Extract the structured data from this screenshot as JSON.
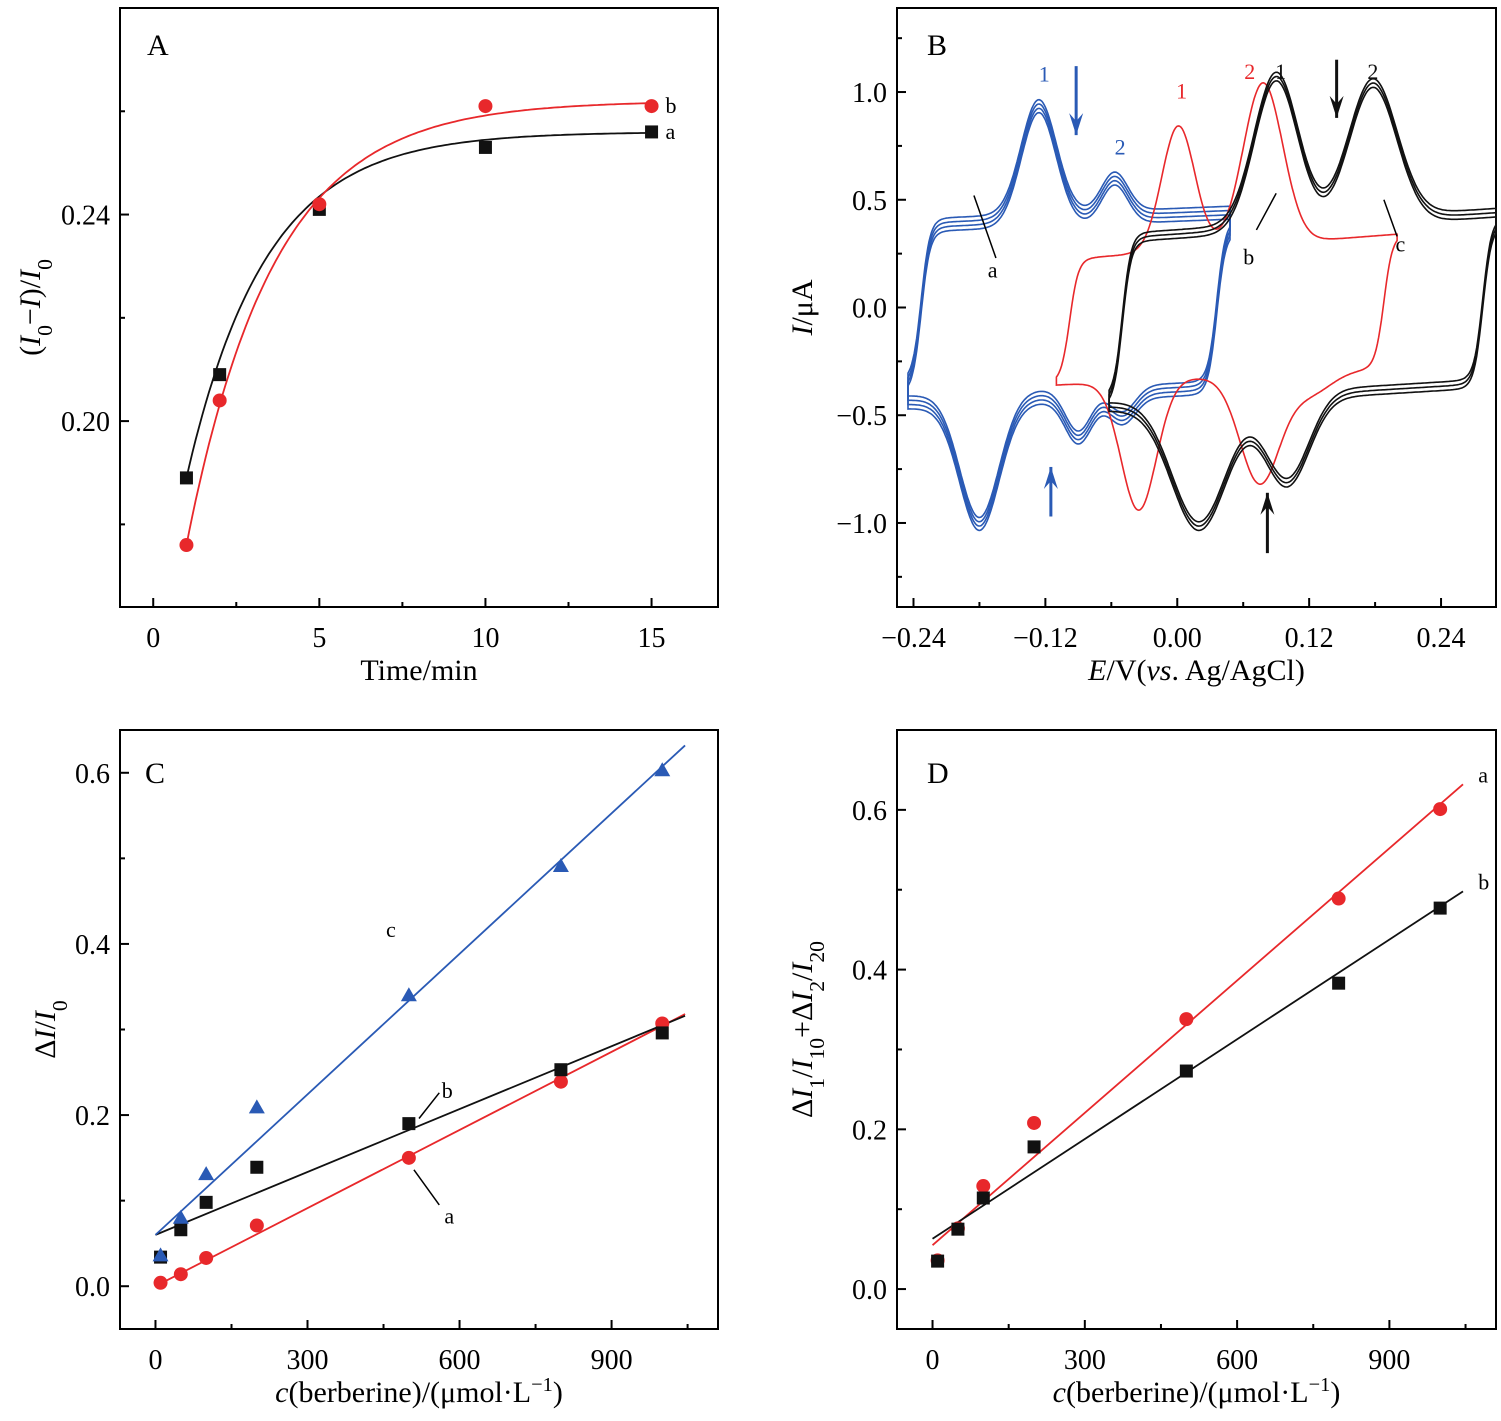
{
  "colors": {
    "black": "#111111",
    "red": "#e8282b",
    "blue": "#2a5ab5"
  },
  "chart_data": [
    {
      "panel": "A",
      "type": "line",
      "xlabel": "Time/min",
      "ylabel": "(I0−I)/I0",
      "ylabel_parts": [
        "(",
        "I",
        "0",
        "−",
        "I",
        ")/",
        "I",
        "0"
      ],
      "xlim": [
        -1,
        17
      ],
      "ylim": [
        0.164,
        0.28
      ],
      "xticks": [
        0,
        5,
        10,
        15
      ],
      "xticklabels": [
        "0",
        "5",
        "10",
        "15"
      ],
      "yticks": [
        0.2,
        0.24
      ],
      "yticklabels": [
        "0.20",
        "0.24"
      ],
      "grid": false,
      "series": [
        {
          "name": "a",
          "color": "#111111",
          "marker": "square",
          "x": [
            1,
            2,
            5,
            10,
            15
          ],
          "y": [
            0.189,
            0.209,
            0.241,
            0.253,
            0.256
          ]
        },
        {
          "name": "b",
          "color": "#e8282b",
          "marker": "circle",
          "x": [
            1,
            2,
            5,
            10,
            15
          ],
          "y": [
            0.176,
            0.204,
            0.242,
            0.261,
            0.261
          ]
        }
      ]
    },
    {
      "panel": "B",
      "type": "line",
      "xlabel": "E/V(vs. Ag/AgCl)",
      "xlabel_parts": [
        "E",
        "/V(",
        "vs",
        ". Ag/AgCl)"
      ],
      "ylabel": "I/μA",
      "ylabel_parts": [
        "I",
        "/μA"
      ],
      "xlim": [
        -0.255,
        0.29
      ],
      "ylim": [
        -1.39,
        1.39
      ],
      "xticks": [
        -0.24,
        -0.12,
        0.0,
        0.12,
        0.24
      ],
      "xticklabels": [
        "−0.24",
        "−0.12",
        "0.00",
        "0.12",
        "0.24"
      ],
      "yticks": [
        -1.0,
        -0.5,
        0.0,
        0.5,
        1.0
      ],
      "yticklabels": [
        "−1.0",
        "−0.5",
        "0.0",
        "0.5",
        "1.0"
      ],
      "grid": false,
      "curve_labels": [
        "a",
        "b",
        "c"
      ],
      "peak_labels": {
        "blue": [
          "1",
          "2"
        ],
        "red": [
          "1",
          "2"
        ],
        "black": [
          "1",
          "2"
        ]
      }
    },
    {
      "panel": "C",
      "type": "scatter",
      "xlabel": "c(berberine)/(μmol·L−1)",
      "xlabel_parts": [
        "c",
        "(berberine)/(μmol·L",
        "−1",
        ")"
      ],
      "ylabel": "ΔI/I0",
      "ylabel_parts": [
        "Δ",
        "I",
        "/",
        "I",
        "0"
      ],
      "xlim": [
        -70,
        1110
      ],
      "ylim": [
        -0.05,
        0.65
      ],
      "xticks": [
        0,
        300,
        600,
        900
      ],
      "xticklabels": [
        "0",
        "300",
        "600",
        "900"
      ],
      "yticks": [
        0.0,
        0.2,
        0.4,
        0.6
      ],
      "yticklabels": [
        "0.0",
        "0.2",
        "0.4",
        "0.6"
      ],
      "grid": false,
      "series": [
        {
          "name": "a",
          "color": "#e8282b",
          "marker": "circle",
          "x": [
            10,
            50,
            100,
            200,
            500,
            800,
            1000
          ],
          "y": [
            0.004,
            0.014,
            0.033,
            0.071,
            0.15,
            0.239,
            0.307
          ],
          "fit": [
            [
              0,
              0.0
            ],
            [
              1045,
              0.318
            ]
          ]
        },
        {
          "name": "b",
          "color": "#111111",
          "marker": "square",
          "x": [
            10,
            50,
            100,
            200,
            500,
            800,
            1000
          ],
          "y": [
            0.034,
            0.066,
            0.098,
            0.139,
            0.19,
            0.253,
            0.296
          ],
          "fit": [
            [
              0,
              0.06
            ],
            [
              1045,
              0.316
            ]
          ]
        },
        {
          "name": "c",
          "color": "#2a5ab5",
          "marker": "triangle",
          "x": [
            10,
            50,
            100,
            200,
            500,
            800,
            1000
          ],
          "y": [
            0.036,
            0.08,
            0.131,
            0.209,
            0.34,
            0.491,
            0.603
          ],
          "fit": [
            [
              0,
              0.06
            ],
            [
              1045,
              0.632
            ]
          ]
        }
      ]
    },
    {
      "panel": "D",
      "type": "scatter",
      "xlabel": "c(berberine)/(μmol·L−1)",
      "xlabel_parts": [
        "c",
        "(berberine)/(μmol·L",
        "−1",
        ")"
      ],
      "ylabel": "ΔI1/I10+ΔI2/I20",
      "ylabel_parts": [
        "Δ",
        "I",
        "1",
        "/",
        "I",
        "10",
        "+Δ",
        "I",
        "2",
        "/",
        "I",
        "20"
      ],
      "xlim": [
        -70,
        1110
      ],
      "ylim": [
        -0.05,
        0.7
      ],
      "xticks": [
        0,
        300,
        600,
        900
      ],
      "xticklabels": [
        "0",
        "300",
        "600",
        "900"
      ],
      "yticks": [
        0.0,
        0.2,
        0.4,
        0.6
      ],
      "yticklabels": [
        "0.0",
        "0.2",
        "0.4",
        "0.6"
      ],
      "grid": false,
      "series": [
        {
          "name": "a",
          "color": "#e8282b",
          "marker": "circle",
          "x": [
            10,
            50,
            100,
            200,
            500,
            800,
            1000
          ],
          "y": [
            0.036,
            0.076,
            0.129,
            0.208,
            0.338,
            0.489,
            0.601
          ],
          "fit": [
            [
              0,
              0.055
            ],
            [
              1045,
              0.632
            ]
          ]
        },
        {
          "name": "b",
          "color": "#111111",
          "marker": "square",
          "x": [
            10,
            50,
            100,
            200,
            500,
            800,
            1000
          ],
          "y": [
            0.035,
            0.075,
            0.114,
            0.178,
            0.273,
            0.383,
            0.477
          ],
          "fit": [
            [
              0,
              0.063
            ],
            [
              1045,
              0.498
            ]
          ]
        }
      ]
    }
  ]
}
